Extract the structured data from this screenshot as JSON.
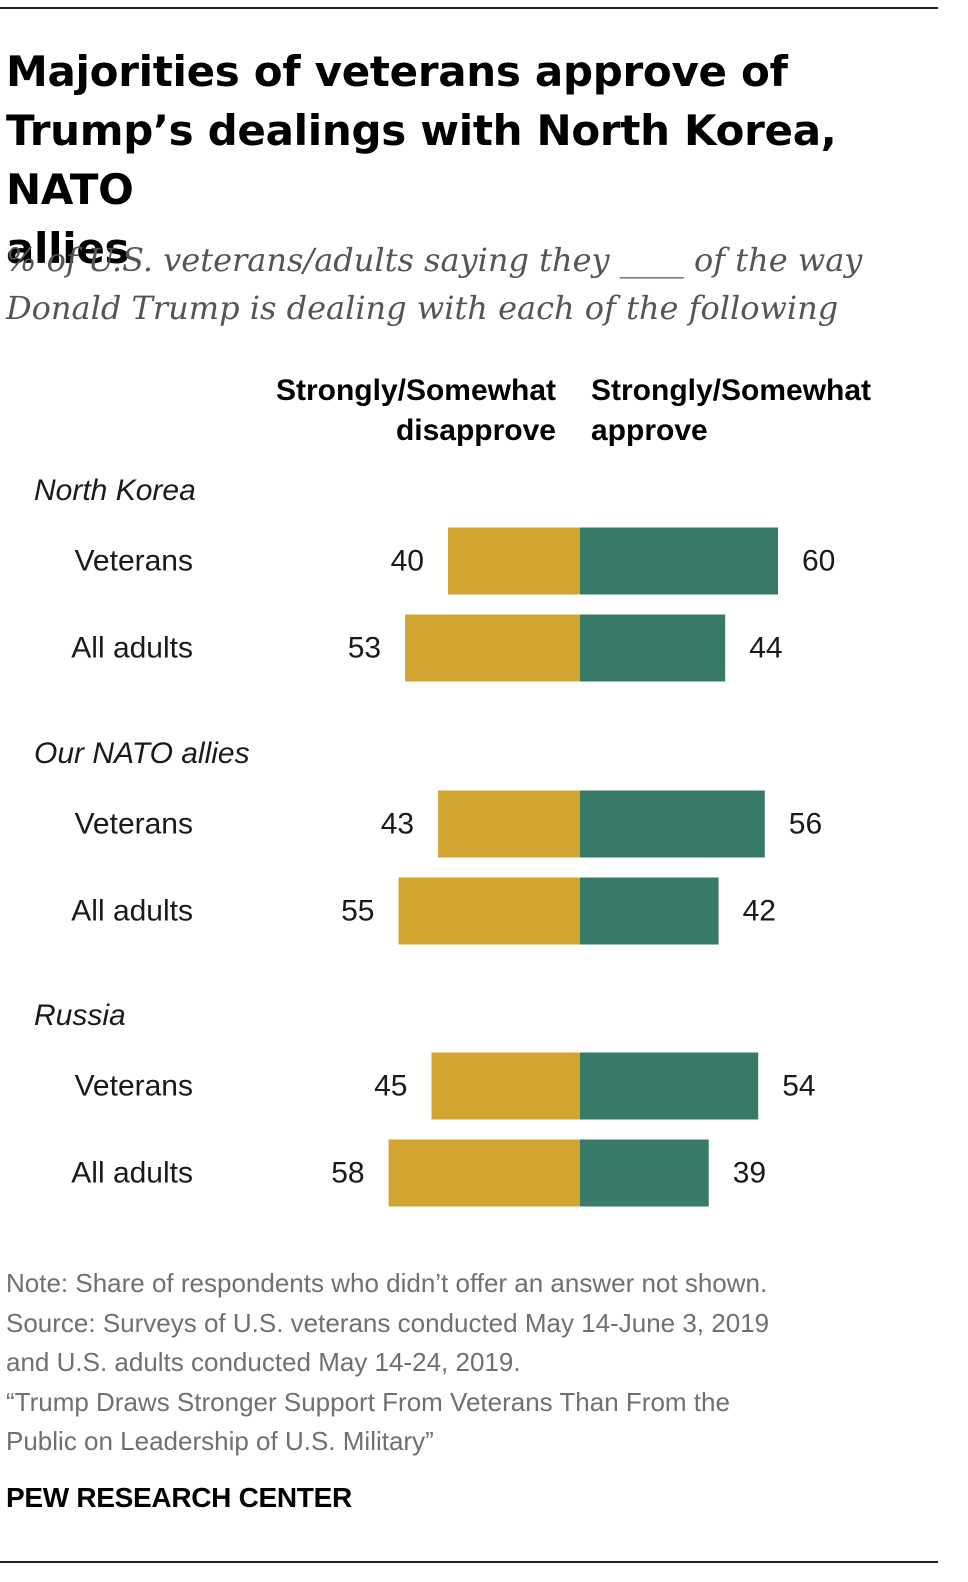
{
  "header": {
    "title_lines": [
      "Majorities of veterans approve of",
      "Trump’s dealings with North Korea, NATO",
      "allies"
    ],
    "subtitle_lines": [
      "% of U.S. veterans/adults saying they ____ of the way",
      "Donald Trump is dealing with each of the following"
    ]
  },
  "legend": {
    "disapprove_lines": [
      "Strongly/Somewhat",
      "disapprove"
    ],
    "approve_lines": [
      "Strongly/Somewhat",
      "approve"
    ]
  },
  "colors": {
    "disapprove": "#D1A52F",
    "approve": "#377A68"
  },
  "chart_data": {
    "type": "bar",
    "orientation": "diverging-horizontal",
    "series": [
      {
        "name": "Strongly/Somewhat disapprove",
        "color": "#D1A52F"
      },
      {
        "name": "Strongly/Somewhat approve",
        "color": "#377A68"
      }
    ],
    "groups": [
      {
        "name": "North Korea",
        "rows": [
          {
            "label": "Veterans",
            "disapprove": 40,
            "approve": 60
          },
          {
            "label": "All adults",
            "disapprove": 53,
            "approve": 44
          }
        ]
      },
      {
        "name": "Our NATO allies",
        "rows": [
          {
            "label": "Veterans",
            "disapprove": 43,
            "approve": 56
          },
          {
            "label": "All adults",
            "disapprove": 55,
            "approve": 42
          }
        ]
      },
      {
        "name": "Russia",
        "rows": [
          {
            "label": "Veterans",
            "disapprove": 45,
            "approve": 54
          },
          {
            "label": "All adults",
            "disapprove": 58,
            "approve": 39
          }
        ]
      }
    ]
  },
  "footer": {
    "lines": [
      "Note: Share of respondents who didn’t offer an answer not shown.",
      "Source: Surveys of U.S. veterans conducted May 14-June 3, 2019",
      "and U.S. adults conducted May 14-24, 2019.",
      "“Trump Draws Stronger Support From Veterans Than From the",
      "Public on Leadership of U.S. Military”"
    ],
    "brand": "PEW RESEARCH CENTER"
  }
}
